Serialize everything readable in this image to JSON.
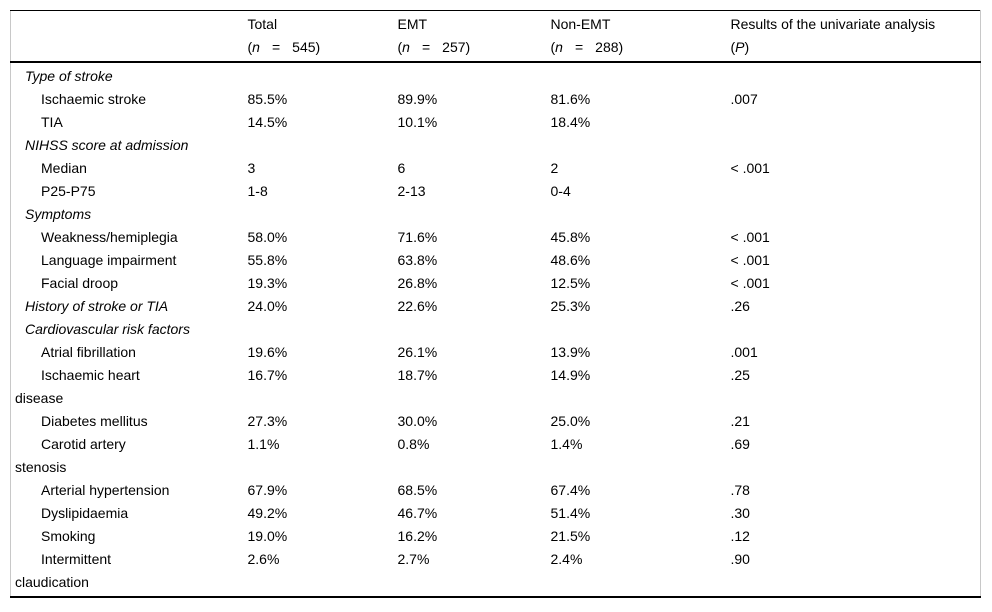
{
  "colors": {
    "background": "#ffffff",
    "text": "#000000",
    "heavy_rule": "#000000",
    "faint_border": "#c8c8c8"
  },
  "table": {
    "header": {
      "paren_open": "(",
      "paren_close": ")",
      "eq": "=",
      "n_symbol": "n",
      "p_symbol": "P",
      "columns": [
        {
          "label": "Total",
          "n": "545"
        },
        {
          "label": "EMT",
          "n": "257"
        },
        {
          "label": "Non-EMT",
          "n": "288"
        },
        {
          "label": "Results of the univariate analysis"
        }
      ]
    },
    "rows": [
      {
        "type": "section",
        "label": "Type of stroke",
        "total": "",
        "emt": "",
        "nonemt": "",
        "p": ""
      },
      {
        "type": "item",
        "label": "Ischaemic stroke",
        "total": "85.5%",
        "emt": "89.9%",
        "nonemt": "81.6%",
        "p": ".007"
      },
      {
        "type": "item",
        "label": "TIA",
        "total": "14.5%",
        "emt": "10.1%",
        "nonemt": "18.4%",
        "p": ""
      },
      {
        "type": "section",
        "label": "NIHSS score at admission",
        "total": "",
        "emt": "",
        "nonemt": "",
        "p": ""
      },
      {
        "type": "item",
        "label": "Median",
        "total": "3",
        "emt": "6",
        "nonemt": "2",
        "p": "< .001"
      },
      {
        "type": "item",
        "label": "P25-P75",
        "total": "1-8",
        "emt": "2-13",
        "nonemt": "0-4",
        "p": ""
      },
      {
        "type": "section",
        "label": "Symptoms",
        "total": "",
        "emt": "",
        "nonemt": "",
        "p": ""
      },
      {
        "type": "item",
        "label": "Weakness/hemiplegia",
        "total": "58.0%",
        "emt": "71.6%",
        "nonemt": "45.8%",
        "p": "< .001"
      },
      {
        "type": "item",
        "label": "Language impairment",
        "total": "55.8%",
        "emt": "63.8%",
        "nonemt": "48.6%",
        "p": "< .001"
      },
      {
        "type": "item",
        "label": "Facial droop",
        "total": "19.3%",
        "emt": "26.8%",
        "nonemt": "12.5%",
        "p": "< .001"
      },
      {
        "type": "section-data",
        "label": "History of stroke or TIA",
        "total": "24.0%",
        "emt": "22.6%",
        "nonemt": "25.3%",
        "p": ".26"
      },
      {
        "type": "section",
        "label": "Cardiovascular risk factors",
        "total": "",
        "emt": "",
        "nonemt": "",
        "p": ""
      },
      {
        "type": "item",
        "label": "Atrial fibrillation",
        "total": "19.6%",
        "emt": "26.1%",
        "nonemt": "13.9%",
        "p": ".001"
      },
      {
        "type": "item",
        "label": "Ischaemic heart\ndisease",
        "total": "16.7%",
        "emt": "18.7%",
        "nonemt": "14.9%",
        "p": ".25"
      },
      {
        "type": "item",
        "label": "Diabetes mellitus",
        "total": "27.3%",
        "emt": "30.0%",
        "nonemt": "25.0%",
        "p": ".21"
      },
      {
        "type": "item",
        "label": "Carotid artery\nstenosis",
        "total": "1.1%",
        "emt": "0.8%",
        "nonemt": "1.4%",
        "p": ".69"
      },
      {
        "type": "item",
        "label": "Arterial hypertension",
        "total": "67.9%",
        "emt": "68.5%",
        "nonemt": "67.4%",
        "p": ".78"
      },
      {
        "type": "item",
        "label": "Dyslipidaemia",
        "total": "49.2%",
        "emt": "46.7%",
        "nonemt": "51.4%",
        "p": ".30"
      },
      {
        "type": "item",
        "label": "Smoking",
        "total": "19.0%",
        "emt": "16.2%",
        "nonemt": "21.5%",
        "p": ".12"
      },
      {
        "type": "item",
        "label": "Intermittent\nclaudication",
        "total": "2.6%",
        "emt": "2.7%",
        "nonemt": "2.4%",
        "p": ".90"
      }
    ]
  }
}
